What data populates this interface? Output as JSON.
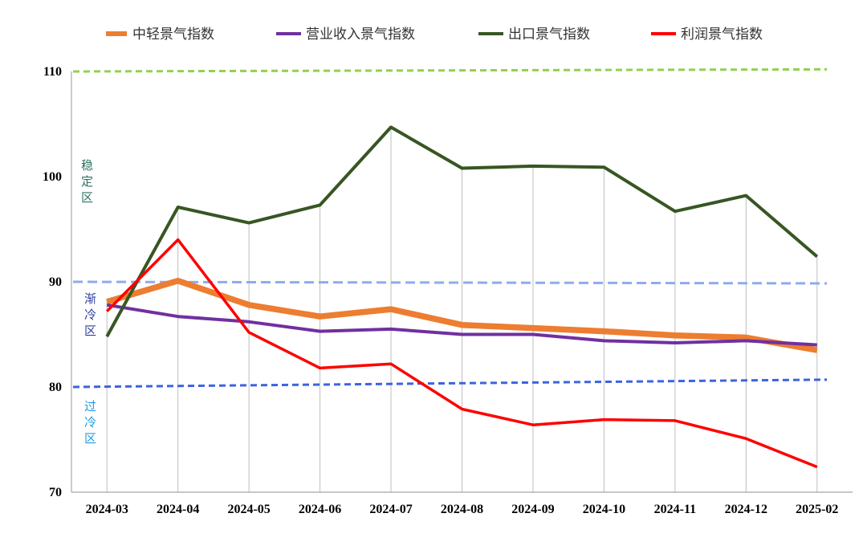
{
  "chart_data": {
    "type": "line",
    "categories": [
      "2024-03",
      "2024-04",
      "2024-05",
      "2024-06",
      "2024-07",
      "2024-08",
      "2024-09",
      "2024-10",
      "2024-11",
      "2024-12",
      "2025-02"
    ],
    "ylim": [
      70,
      110
    ],
    "yticks": [
      110,
      100,
      90,
      80,
      70
    ],
    "grid": false,
    "drop_lines": true,
    "legend_position": "top",
    "series": [
      {
        "name": "中轻景气指数",
        "color": "#ed7d31",
        "values": [
          88.1,
          90.1,
          87.8,
          86.7,
          87.4,
          85.9,
          85.6,
          85.3,
          84.9,
          84.7,
          83.5
        ]
      },
      {
        "name": "营业收入景气指数",
        "color": "#7030a0",
        "values": [
          87.8,
          86.7,
          86.2,
          85.3,
          85.5,
          85.0,
          85.0,
          84.4,
          84.2,
          84.4,
          84.0
        ]
      },
      {
        "name": "出口景气指数",
        "color": "#375623",
        "values": [
          84.8,
          97.1,
          95.6,
          97.3,
          104.7,
          100.8,
          101.0,
          100.9,
          96.7,
          98.2,
          92.4
        ]
      },
      {
        "name": "利润景气指数",
        "color": "#ff0000",
        "values": [
          87.2,
          94.0,
          85.2,
          81.8,
          82.2,
          77.9,
          76.4,
          76.9,
          76.8,
          75.1,
          72.4
        ]
      }
    ],
    "reference_lines": [
      {
        "from": 110,
        "to": 110.2,
        "color": "#92d050"
      },
      {
        "from": 90,
        "to": 89.85,
        "color": "#8faaf0"
      },
      {
        "from": 80,
        "to": 80.7,
        "color": "#3d63e0"
      }
    ],
    "zones": [
      {
        "label": "稳定区",
        "color": "#2c7263"
      },
      {
        "label": "渐冷区",
        "color": "#2e3f9e"
      },
      {
        "label": "过冷区",
        "color": "#1f9be0"
      }
    ]
  }
}
